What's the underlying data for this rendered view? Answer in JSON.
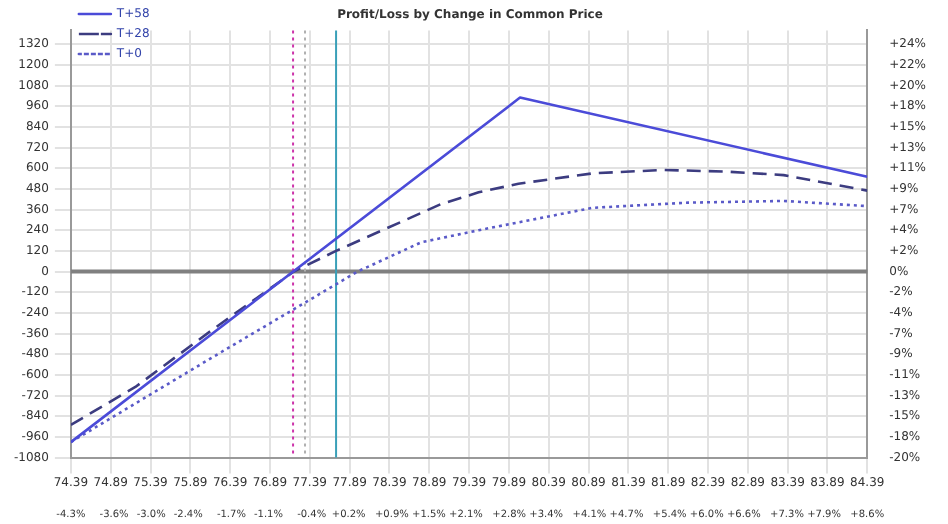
{
  "chart_data": {
    "type": "line",
    "title": "Profit/Loss by Change in Common Price",
    "xlim": [
      74.39,
      84.39
    ],
    "xticks": [
      {
        "value": 74.39,
        "label": "74.39"
      },
      {
        "value": 74.89,
        "label": "74.89"
      },
      {
        "value": 75.39,
        "label": "75.39"
      },
      {
        "value": 75.89,
        "label": "75.89"
      },
      {
        "value": 76.39,
        "label": "76.39"
      },
      {
        "value": 76.89,
        "label": "76.89"
      },
      {
        "value": 77.39,
        "label": "77.39"
      },
      {
        "value": 77.89,
        "label": "77.89"
      },
      {
        "value": 78.39,
        "label": "78.39"
      },
      {
        "value": 78.89,
        "label": "78.89"
      },
      {
        "value": 79.39,
        "label": "79.39"
      },
      {
        "value": 79.89,
        "label": "79.89"
      },
      {
        "value": 80.39,
        "label": "80.39"
      },
      {
        "value": 80.89,
        "label": "80.89"
      },
      {
        "value": 81.39,
        "label": "81.39"
      },
      {
        "value": 81.89,
        "label": "81.89"
      },
      {
        "value": 82.39,
        "label": "82.39"
      },
      {
        "value": 82.89,
        "label": "82.89"
      },
      {
        "value": 83.39,
        "label": "83.39"
      },
      {
        "value": 83.89,
        "label": "83.89"
      },
      {
        "value": 84.39,
        "label": "84.39"
      }
    ],
    "x2lim": [
      -4.3,
      8.6
    ],
    "x2ticks": [
      {
        "value": -4.3,
        "label": "-4.3%"
      },
      {
        "value": -3.6,
        "label": "-3.6%"
      },
      {
        "value": -3.0,
        "label": "-3.0%"
      },
      {
        "value": -2.4,
        "label": "-2.4%"
      },
      {
        "value": -1.7,
        "label": "-1.7%"
      },
      {
        "value": -1.1,
        "label": "-1.1%"
      },
      {
        "value": -0.4,
        "label": "-0.4%"
      },
      {
        "value": 0.2,
        "label": "+0.2%"
      },
      {
        "value": 0.9,
        "label": "+0.9%"
      },
      {
        "value": 1.5,
        "label": "+1.5%"
      },
      {
        "value": 2.1,
        "label": "+2.1%"
      },
      {
        "value": 2.8,
        "label": "+2.8%"
      },
      {
        "value": 3.4,
        "label": "+3.4%"
      },
      {
        "value": 4.1,
        "label": "+4.1%"
      },
      {
        "value": 4.7,
        "label": "+4.7%"
      },
      {
        "value": 5.4,
        "label": "+5.4%"
      },
      {
        "value": 6.0,
        "label": "+6.0%"
      },
      {
        "value": 6.6,
        "label": "+6.6%"
      },
      {
        "value": 7.3,
        "label": "+7.3%"
      },
      {
        "value": 7.9,
        "label": "+7.9%"
      },
      {
        "value": 8.6,
        "label": "+8.6%"
      }
    ],
    "ylim": [
      -1080,
      1400
    ],
    "yticks": [
      -1080,
      -960,
      -840,
      -720,
      -600,
      -480,
      -360,
      -240,
      -120,
      0,
      120,
      240,
      360,
      480,
      600,
      720,
      840,
      960,
      1080,
      1200,
      1320
    ],
    "y2lim": [
      -19.82,
      25.69
    ],
    "y2ticks": [
      {
        "value": -19.82,
        "label": "-20%"
      },
      {
        "value": -17.61,
        "label": "-18%"
      },
      {
        "value": -15.41,
        "label": "-15%"
      },
      {
        "value": -13.21,
        "label": "-13%"
      },
      {
        "value": -11.01,
        "label": "-11%"
      },
      {
        "value": -8.81,
        "label": "-9%"
      },
      {
        "value": -6.61,
        "label": "-7%"
      },
      {
        "value": -4.4,
        "label": "-4%"
      },
      {
        "value": -2.2,
        "label": "-2%"
      },
      {
        "value": 0,
        "label": "0%"
      },
      {
        "value": 2.2,
        "label": "+2%"
      },
      {
        "value": 4.4,
        "label": "+4%"
      },
      {
        "value": 6.61,
        "label": "+7%"
      },
      {
        "value": 8.81,
        "label": "+9%"
      },
      {
        "value": 11.01,
        "label": "+11%"
      },
      {
        "value": 13.21,
        "label": "+13%"
      },
      {
        "value": 15.41,
        "label": "+15%"
      },
      {
        "value": 17.61,
        "label": "+18%"
      },
      {
        "value": 19.82,
        "label": "+20%"
      },
      {
        "value": 22.02,
        "label": "+22%"
      },
      {
        "value": 24.22,
        "label": "+24%"
      }
    ],
    "grid": true,
    "legend": "top left",
    "marker": "none",
    "series": [
      {
        "name": "T+58",
        "color": "#4b4bd8",
        "line_style": "solid",
        "x": [
          74.39,
          80.03,
          84.39
        ],
        "values": [
          -990,
          1010,
          550
        ]
      },
      {
        "name": "T+28",
        "color": "#3c3c80",
        "line_style": "dashed",
        "x": [
          74.39,
          75.2,
          76.16,
          77.19,
          77.72,
          79.03,
          79.51,
          80.01,
          80.94,
          81.83,
          82.62,
          83.34,
          84.39
        ],
        "values": [
          -890,
          -670,
          -340,
          0,
          120,
          390,
          460,
          510,
          570,
          590,
          580,
          560,
          470
        ]
      },
      {
        "name": "T+0",
        "color": "#5a5ac8",
        "line_style": "dotted",
        "x": [
          74.39,
          76.16,
          77.99,
          78.79,
          79.51,
          80.94,
          82.14,
          83.34,
          84.39
        ],
        "values": [
          -990,
          -500,
          0,
          170,
          240,
          370,
          400,
          410,
          380
        ]
      }
    ],
    "ref_lines": [
      {
        "axis": "y",
        "value": 0,
        "color": "#808080",
        "line_style": "solid"
      },
      {
        "axis": "x",
        "value": 77.18,
        "color": "#cc33aa",
        "line_style": "dotted"
      },
      {
        "axis": "x",
        "value": 77.33,
        "color": "#b0b0b0",
        "line_style": "dotted"
      },
      {
        "axis": "x",
        "value": 77.72,
        "color": "#3aa0b8",
        "line_style": "solid"
      }
    ]
  }
}
